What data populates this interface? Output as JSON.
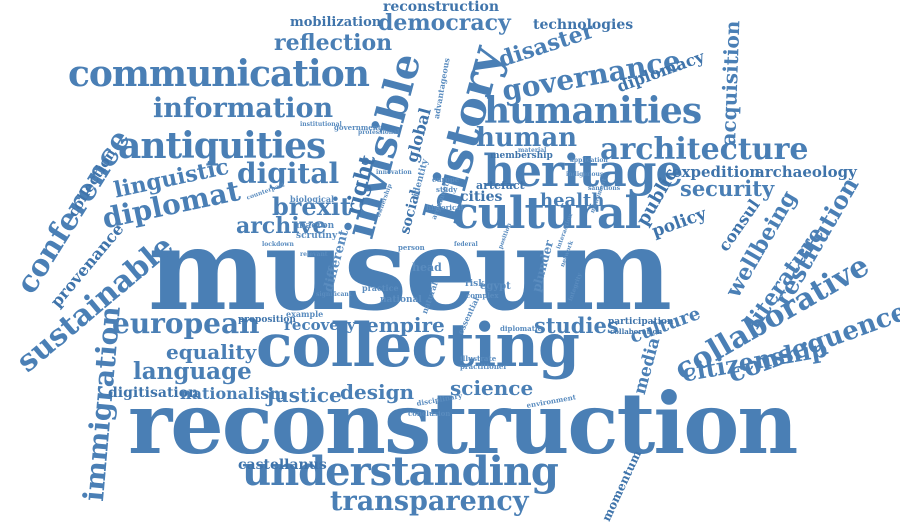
{
  "colors": {
    "primary": "#4a7fb5",
    "dark": "#3f74ab",
    "light": "#5a8cbf",
    "background": "#ffffff"
  },
  "words": {
    "museum": "museum",
    "reconstruction": "reconstruction",
    "collecting": "collecting",
    "reconstruction_small": "reconstruction",
    "democracy": "democracy",
    "technologies": "technologies",
    "mobilization": "mobilization",
    "reflection": "reflection",
    "communication": "communication",
    "information": "information",
    "antiquities": "antiquities",
    "invisible": "invisible",
    "history": "history",
    "disaster": "disaster",
    "governance": "governance",
    "diplomacy": "diplomacy",
    "acquisition": "acquisition",
    "humanities": "humanities",
    "human": "human",
    "heritage": "heritage",
    "architecture": "architecture",
    "expedition": "expedition",
    "archaeology": "archaeology",
    "security": "security",
    "policy": "policy",
    "public": "public",
    "cultural": "cultural",
    "digital": "digital",
    "brexit": "brexit",
    "archive": "archive",
    "diplomat": "diplomat",
    "linguistic": "linguistic",
    "conference": "conference",
    "collection": "collection",
    "provenance": "provenance",
    "sustainable": "sustainable",
    "immigration": "immigration",
    "european": "european",
    "equality": "equality",
    "language": "language",
    "digitisation": "digitisation",
    "nationalism": "nationalism",
    "justice": "justice",
    "design": "design",
    "science": "science",
    "empire": "empire",
    "studies": "studies",
    "recovery": "recovery",
    "culture": "culture",
    "media": "media",
    "collaborative": "collaborative",
    "consequence": "consequence",
    "citizenship": "citizenship",
    "wellbeing": "wellbeing",
    "literature": "literature",
    "restitution": "restitution",
    "consul": "consul",
    "health": "health",
    "cities": "cities",
    "global": "global",
    "right": "right",
    "understanding": "understanding",
    "transparency": "transparency",
    "castellanus": "castellanus",
    "momentum": "momentum",
    "participation": "participation",
    "collaboration": "collaboration",
    "membership": "membership",
    "social": "social",
    "identity": "identity",
    "artefact": "artefact",
    "biological": "biological",
    "macron": "macron",
    "scrutiny": "scrutiny",
    "different": "different",
    "head": "head",
    "risk": "risk",
    "egypt": "egypt",
    "plunder": "plunder",
    "national": "national",
    "practice": "practice",
    "proposition": "proposition",
    "example": "example",
    "illustrate": "illustrate",
    "practitioner": "practitioner",
    "disciplinary": "disciplinary",
    "environment": "environment",
    "conclusion": "conclusion",
    "government": "government",
    "advantageous": "advantageous",
    "person": "person",
    "diplomatic": "diplomatic",
    "essential": "essential",
    "complex": "complex",
    "natural": "natural",
    "europe": "europe",
    "study": "study",
    "argument": "argument",
    "historical": "historical",
    "application": "application",
    "significant": "significant",
    "institutional": "institutional",
    "relevant": "relevant",
    "counterpart": "counterpart",
    "innovation": "innovation",
    "lockdown": "lockdown",
    "federal": "federal",
    "interaction": "interaction",
    "monument": "monument",
    "professional": "professional",
    "ownership": "ownership",
    "integrity": "integrity",
    "network": "network",
    "material": "material",
    "indigenous": "indigenous",
    "position": "position",
    "sanctions": "sanctions"
  }
}
